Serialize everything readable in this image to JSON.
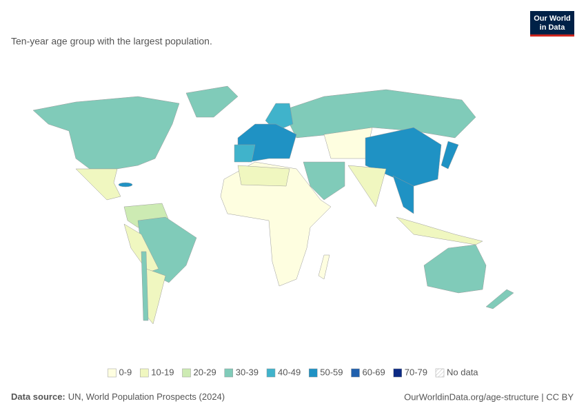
{
  "header": {
    "subtitle": "Ten-year age group with the largest population.",
    "logo": [
      "Our World",
      "in Data"
    ]
  },
  "legend": {
    "items": [
      {
        "label": "0-9",
        "color": "#fefee0"
      },
      {
        "label": "10-19",
        "color": "#f0f7c0"
      },
      {
        "label": "20-29",
        "color": "#cdebb3"
      },
      {
        "label": "30-39",
        "color": "#80cbb9"
      },
      {
        "label": "40-49",
        "color": "#40b3cb"
      },
      {
        "label": "50-59",
        "color": "#1f92c4"
      },
      {
        "label": "60-69",
        "color": "#2060ad"
      },
      {
        "label": "70-79",
        "color": "#0c2a84"
      }
    ],
    "no_data": "No data"
  },
  "footer": {
    "source_label": "Data source:",
    "source": "UN, World Population Prospects (2024)",
    "url": "OurWorldinData.org/age-structure | CC BY"
  }
}
